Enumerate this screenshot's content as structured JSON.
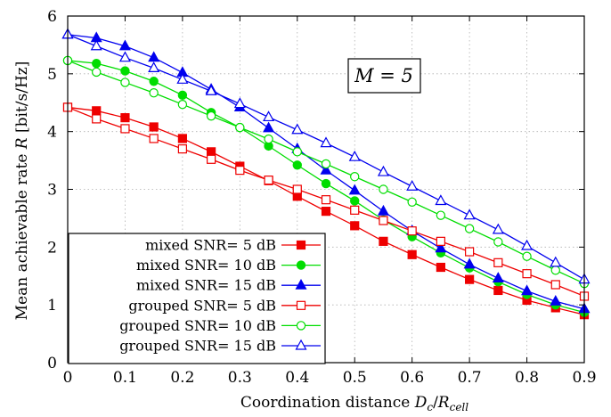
{
  "chart_data": {
    "type": "line",
    "xlabel_text": "Coordination distance ",
    "xlabel_math_main": "D",
    "xlabel_math_sub": "c",
    "xlabel_slash": "/",
    "xlabel_math_main2": "R",
    "xlabel_math_sub2": "cell",
    "ylabel": "Mean achievable rate R [bit/s/Hz]",
    "ylabel_text": "Mean achievable rate ",
    "ylabel_symbol": "R",
    "ylabel_unit": " [bit/s/Hz]",
    "annotation": "M = 5",
    "xlim": [
      0,
      0.9
    ],
    "ylim": [
      0,
      6
    ],
    "xticks": [
      "0",
      "0.1",
      "0.2",
      "0.3",
      "0.4",
      "0.5",
      "0.6",
      "0.7",
      "0.8",
      "0.9"
    ],
    "yticks": [
      "0",
      "1",
      "2",
      "3",
      "4",
      "5",
      "6"
    ],
    "grid": true,
    "legend_position": "bottom-left",
    "x": [
      0,
      0.05,
      0.1,
      0.15,
      0.2,
      0.25,
      0.3,
      0.35,
      0.4,
      0.45,
      0.5,
      0.55,
      0.6,
      0.65,
      0.7,
      0.75,
      0.8,
      0.85,
      0.9
    ],
    "series": [
      {
        "name": "mixed SNR= 5 dB",
        "color": "#ee0000",
        "marker": "square",
        "filled": true,
        "values": [
          4.42,
          4.36,
          4.24,
          4.08,
          3.88,
          3.65,
          3.4,
          3.15,
          2.88,
          2.62,
          2.37,
          2.1,
          1.87,
          1.65,
          1.44,
          1.25,
          1.08,
          0.95,
          0.83
        ]
      },
      {
        "name": "mixed SNR= 10 dB",
        "color": "#00dd00",
        "marker": "circle",
        "filled": true,
        "values": [
          5.23,
          5.18,
          5.05,
          4.87,
          4.63,
          4.33,
          4.07,
          3.75,
          3.42,
          3.1,
          2.8,
          2.47,
          2.18,
          1.9,
          1.64,
          1.4,
          1.18,
          1.0,
          0.87
        ]
      },
      {
        "name": "mixed SNR= 15 dB",
        "color": "#0000ee",
        "marker": "triangle",
        "filled": true,
        "values": [
          5.68,
          5.62,
          5.48,
          5.28,
          5.02,
          4.73,
          4.42,
          4.06,
          3.7,
          3.33,
          2.98,
          2.62,
          2.28,
          1.98,
          1.7,
          1.46,
          1.24,
          1.06,
          0.93
        ]
      },
      {
        "name": "grouped SNR= 5 dB",
        "color": "#ee0000",
        "marker": "square",
        "filled": false,
        "values": [
          4.42,
          4.22,
          4.05,
          3.88,
          3.7,
          3.52,
          3.33,
          3.16,
          3.0,
          2.82,
          2.64,
          2.46,
          2.28,
          2.1,
          1.92,
          1.73,
          1.54,
          1.35,
          1.15
        ]
      },
      {
        "name": "grouped SNR= 10 dB",
        "color": "#00dd00",
        "marker": "circle",
        "filled": false,
        "values": [
          5.23,
          5.03,
          4.85,
          4.67,
          4.47,
          4.27,
          4.07,
          3.87,
          3.65,
          3.44,
          3.22,
          3.0,
          2.78,
          2.55,
          2.32,
          2.09,
          1.84,
          1.6,
          1.37
        ]
      },
      {
        "name": "grouped SNR= 15 dB",
        "color": "#0000ee",
        "marker": "triangle",
        "filled": false,
        "values": [
          5.68,
          5.48,
          5.28,
          5.1,
          4.9,
          4.7,
          4.48,
          4.25,
          4.03,
          3.8,
          3.56,
          3.3,
          3.05,
          2.8,
          2.55,
          2.3,
          2.02,
          1.73,
          1.44
        ]
      }
    ]
  }
}
